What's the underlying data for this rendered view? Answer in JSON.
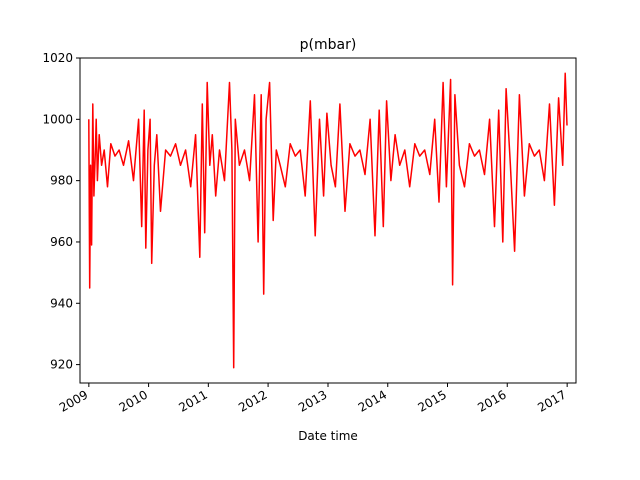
{
  "chart_data": {
    "type": "line",
    "title": "p(mbar)",
    "xlabel": "Date time",
    "ylabel": "",
    "ylim": [
      914,
      1020
    ],
    "xlim": [
      "2008-11-08",
      "2017-02-24"
    ],
    "yticks": [
      920,
      940,
      960,
      980,
      1000,
      1020
    ],
    "xticks": [
      "2009",
      "2010",
      "2011",
      "2012",
      "2013",
      "2014",
      "2015",
      "2016",
      "2017"
    ],
    "grid": false,
    "legend": "none",
    "line_color": "#ff0000",
    "series": [
      {
        "x": [
          "2009-01-01",
          "2009-01-06",
          "2009-01-12",
          "2009-01-18",
          "2009-01-25",
          "2009-02-01",
          "2009-02-10",
          "2009-02-15",
          "2009-02-22",
          "2009-03-05",
          "2009-03-20",
          "2009-04-05",
          "2009-04-25",
          "2009-05-15",
          "2009-06-10",
          "2009-07-05",
          "2009-08-01",
          "2009-09-01",
          "2009-10-01",
          "2009-11-01",
          "2009-11-20",
          "2009-12-05",
          "2009-12-15",
          "2009-12-28",
          "2010-01-10",
          "2010-01-20",
          "2010-02-05",
          "2010-02-20",
          "2010-03-15",
          "2010-04-15",
          "2010-05-15",
          "2010-06-15",
          "2010-07-15",
          "2010-08-15",
          "2010-09-15",
          "2010-10-15",
          "2010-11-10",
          "2010-11-25",
          "2010-12-10",
          "2010-12-25",
          "2011-01-10",
          "2011-01-25",
          "2011-02-15",
          "2011-03-10",
          "2011-04-10",
          "2011-05-10",
          "2011-05-25",
          "2011-06-05",
          "2011-06-15",
          "2011-07-10",
          "2011-08-10",
          "2011-09-10",
          "2011-10-10",
          "2011-11-01",
          "2011-11-20",
          "2011-12-05",
          "2011-12-20",
          "2012-01-10",
          "2012-02-01",
          "2012-02-20",
          "2012-03-15",
          "2012-04-15",
          "2012-05-15",
          "2012-06-15",
          "2012-07-15",
          "2012-08-15",
          "2012-09-15",
          "2012-10-15",
          "2012-11-10",
          "2012-12-05",
          "2012-12-25",
          "2013-01-20",
          "2013-02-15",
          "2013-03-15",
          "2013-04-15",
          "2013-05-15",
          "2013-06-15",
          "2013-07-15",
          "2013-08-15",
          "2013-09-15",
          "2013-10-15",
          "2013-11-10",
          "2013-12-05",
          "2013-12-25",
          "2014-01-20",
          "2014-02-15",
          "2014-03-15",
          "2014-04-15",
          "2014-05-15",
          "2014-06-15",
          "2014-07-15",
          "2014-08-15",
          "2014-09-15",
          "2014-10-15",
          "2014-11-10",
          "2014-12-05",
          "2014-12-25",
          "2015-01-20",
          "2015-02-01",
          "2015-02-15",
          "2015-03-15",
          "2015-04-15",
          "2015-05-15",
          "2015-06-15",
          "2015-07-15",
          "2015-08-15",
          "2015-09-15",
          "2015-10-15",
          "2015-11-10",
          "2015-12-05",
          "2015-12-25",
          "2016-01-20",
          "2016-02-15",
          "2016-03-15",
          "2016-04-15",
          "2016-05-15",
          "2016-06-15",
          "2016-07-15",
          "2016-08-15",
          "2016-09-15",
          "2016-10-15",
          "2016-11-10",
          "2016-12-05",
          "2016-12-20",
          "2016-12-31"
        ],
        "values": [
          1000,
          945,
          985,
          959,
          1005,
          975,
          990,
          1000,
          980,
          995,
          985,
          990,
          978,
          992,
          988,
          990,
          985,
          993,
          980,
          1000,
          965,
          1003,
          958,
          990,
          1000,
          953,
          985,
          995,
          970,
          990,
          988,
          992,
          985,
          990,
          978,
          995,
          955,
          1005,
          963,
          1012,
          985,
          995,
          975,
          990,
          980,
          1012,
          990,
          919,
          1000,
          985,
          990,
          980,
          1008,
          960,
          1008,
          943,
          1000,
          1012,
          967,
          990,
          985,
          978,
          992,
          988,
          990,
          975,
          1006,
          962,
          1000,
          975,
          1002,
          985,
          978,
          1005,
          970,
          992,
          988,
          990,
          982,
          1000,
          962,
          1003,
          965,
          1006,
          980,
          995,
          985,
          990,
          978,
          992,
          988,
          990,
          982,
          1000,
          973,
          1012,
          978,
          1013,
          946,
          1008,
          985,
          978,
          992,
          988,
          990,
          982,
          1000,
          965,
          1003,
          960,
          1010,
          985,
          957,
          1008,
          975,
          992,
          988,
          990,
          980,
          1005,
          972,
          1007,
          985,
          1015,
          998
        ]
      }
    ]
  }
}
